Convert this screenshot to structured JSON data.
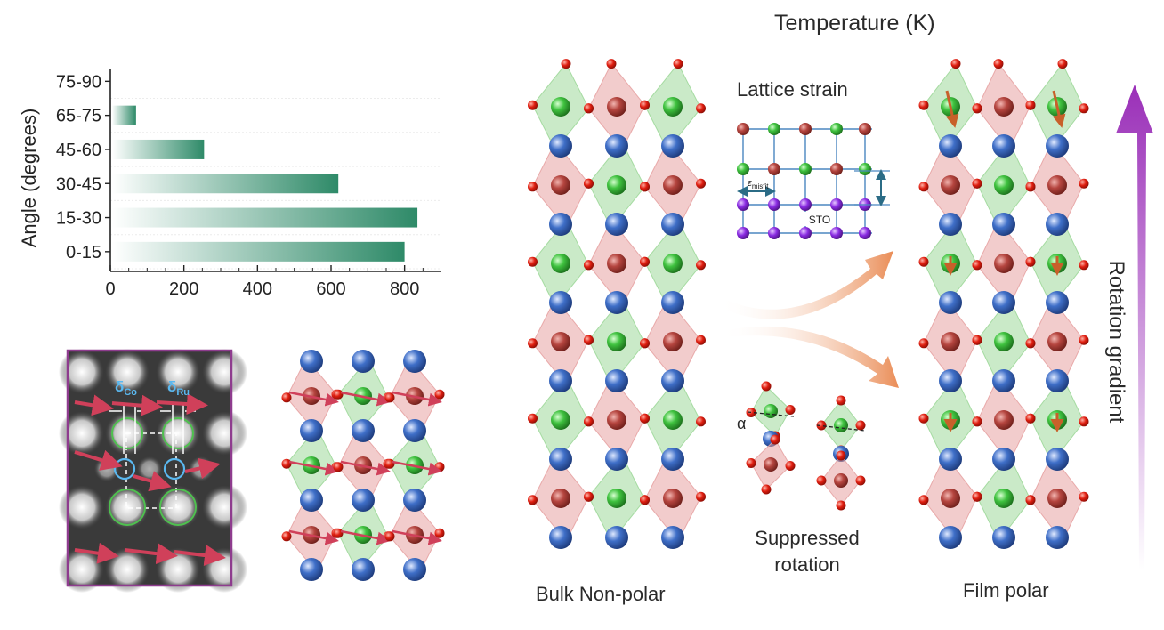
{
  "header": {
    "temperature_label": "Temperature (K)"
  },
  "chart_data": {
    "type": "bar",
    "orientation": "horizontal",
    "ylabel": "Angle (degrees)",
    "xlabel": "",
    "categories": [
      "0-15",
      "15-30",
      "30-45",
      "45-60",
      "65-75",
      "75-90"
    ],
    "values": [
      795,
      830,
      615,
      250,
      65,
      0
    ],
    "xlim": [
      0,
      900
    ],
    "xticks": [
      "0",
      "200",
      "400",
      "600",
      "800"
    ],
    "bar_color": "#2e8a68",
    "grid": false
  },
  "stem_panel": {
    "delta_co": "δ",
    "delta_co_sub": "Co",
    "delta_ru": "δ",
    "delta_ru_sub": "Ru",
    "frame_color": "#8e3c8e",
    "arrow_color": "#d0405a"
  },
  "lattice_strain": {
    "title": "Lattice strain",
    "misfit_symbol": "ε",
    "misfit_sub": "misfit",
    "substrate_label": "STO"
  },
  "suppressed": {
    "alpha_label": "α",
    "label_line1": "Suppressed",
    "label_line2": "rotation"
  },
  "bulk": {
    "label": "Bulk Non-polar"
  },
  "film": {
    "label": "Film polar"
  },
  "gradient": {
    "label": "Rotation gradient",
    "color": "#a040c0"
  },
  "colors": {
    "octa_green": "#9ed89a",
    "octa_red": "#e7a3a3",
    "atom_oxygen": "#e01e10",
    "atom_green": "#3fc23f",
    "atom_red": "#b5453f",
    "atom_blue": "#3f6fc8",
    "atom_purple": "#8a2be2",
    "flow_arrow": "#ea8d57"
  }
}
